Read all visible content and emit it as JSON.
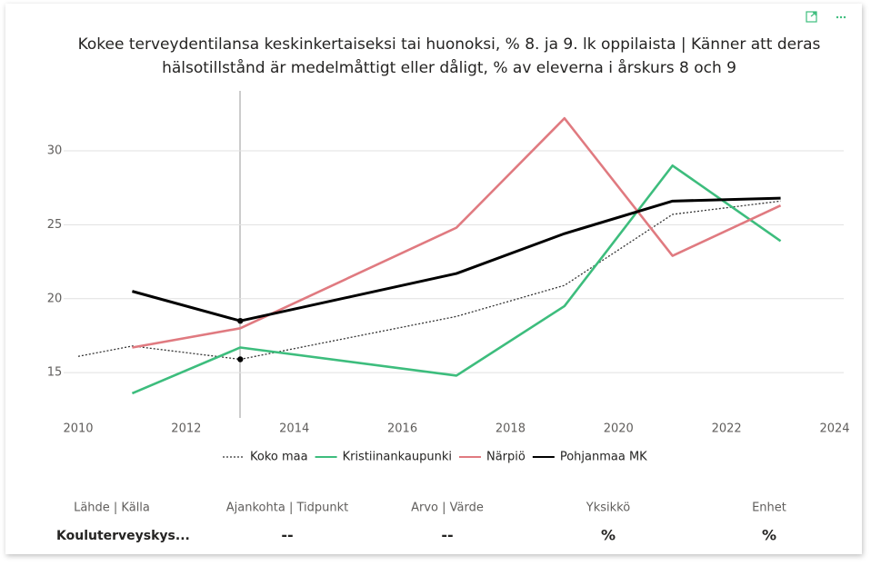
{
  "chart_data": {
    "type": "line",
    "title": "Kokee terveydentilansa keskinkertaiseksi tai huonoksi, % 8. ja 9. lk oppilaista | Känner att deras",
    "subtitle": "hälsotillstånd är medelmåttigt eller dåligt, % av eleverna i årskurs 8 och 9",
    "x": [
      2010,
      2011,
      2013,
      2017,
      2019,
      2021,
      2023
    ],
    "series": [
      {
        "name": "Koko maa",
        "color": "#333333",
        "dash": "dotted",
        "values": [
          16.1,
          16.8,
          15.9,
          18.8,
          20.9,
          25.7,
          26.6
        ]
      },
      {
        "name": "Kristiinankaupunki",
        "color": "#3dbd7d",
        "values": [
          null,
          13.6,
          16.7,
          14.8,
          19.5,
          29.0,
          23.9
        ]
      },
      {
        "name": "Närpiö",
        "color": "#e07a80",
        "values": [
          null,
          16.7,
          18.0,
          24.8,
          32.2,
          22.9,
          26.3
        ]
      },
      {
        "name": "Pohjanmaa MK",
        "color": "#000000",
        "values": [
          null,
          20.5,
          18.5,
          21.7,
          24.4,
          26.6,
          26.8
        ]
      }
    ],
    "xlim": [
      2010,
      2024
    ],
    "xticks": [
      2010,
      2012,
      2014,
      2016,
      2018,
      2020,
      2022,
      2024
    ],
    "ylim": [
      12,
      33.5
    ],
    "yticks": [
      15,
      20,
      25,
      30
    ],
    "grid": true,
    "legend": "bottom"
  },
  "table": {
    "headers": [
      "Lähde | Källa",
      "Ajankohta | Tidpunkt",
      "Arvo | Värde",
      "Yksikkö",
      "Enhet"
    ],
    "rows": [
      [
        "Kouluterveyskys...",
        "--",
        "--",
        "%",
        "%"
      ]
    ]
  }
}
